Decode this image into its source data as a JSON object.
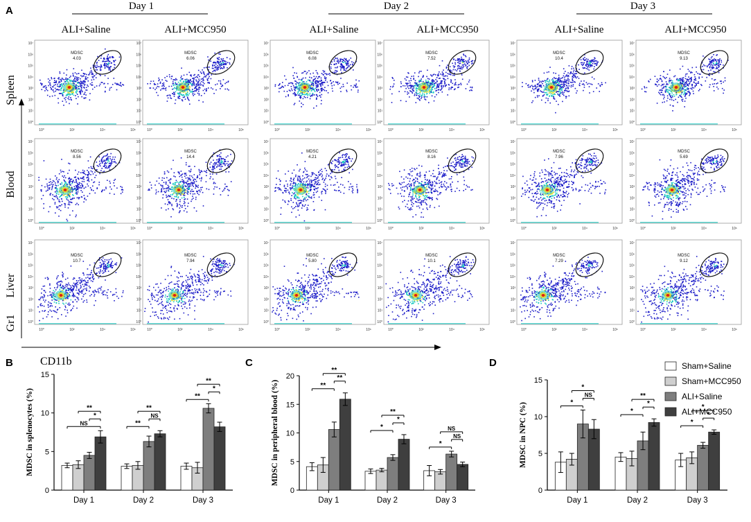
{
  "panel_letters": {
    "A": "A",
    "B": "B",
    "C": "C",
    "D": "D"
  },
  "flow": {
    "days": [
      "Day 1",
      "Day 2",
      "Day 3"
    ],
    "conditions": [
      "ALI+Saline",
      "ALI+MCC950",
      "ALI+Saline",
      "ALI+MCC950",
      "ALI+Saline",
      "ALI+MCC950"
    ],
    "tissues": [
      "Spleen",
      "Blood",
      "Liver"
    ],
    "y_marker": "Gr1",
    "x_marker": "CD11b",
    "gate_label": "MDSC",
    "gate_values": [
      [
        "4.03",
        "6.06",
        "6.08",
        "7.52",
        "10.4",
        "9.13"
      ],
      [
        "8.56",
        "14.4",
        "4.21",
        "8.16",
        "7.96",
        "5.69"
      ],
      [
        "10.7",
        "7.94",
        "5.80",
        "10.1",
        "7.29",
        "9.12"
      ]
    ],
    "y_ticks": [
      "10⁷",
      "10⁶",
      "10⁵",
      "10⁴",
      "10³",
      "10²",
      "10¹",
      "10⁰"
    ],
    "x_ticks": [
      "10⁰",
      "10²",
      "10⁴",
      "10⁶"
    ],
    "colors": {
      "low": "#1c1cc8",
      "mid": "#18c8c0",
      "high": "#f0e020",
      "peak": "#e02010",
      "gate": "#111111"
    }
  },
  "legend": {
    "entries": [
      "Sham+Saline",
      "Sham+MCC950",
      "ALI+Saline",
      "ALI+MCC950"
    ],
    "colors": [
      "#ffffff",
      "#cfcfcf",
      "#7e7e7e",
      "#3f3f3f"
    ]
  },
  "chart_data": [
    {
      "type": "bar",
      "panel": "B",
      "title": "",
      "xlabel": "",
      "ylabel": "MDSC in splenocytes (%)",
      "categories": [
        "Day 1",
        "Day 2",
        "Day 3"
      ],
      "ylim": [
        0,
        15
      ],
      "yticks": [
        "0",
        "5",
        "10",
        "15"
      ],
      "series": [
        {
          "name": "Sham+Saline",
          "values": [
            3.2,
            3.1,
            3.1
          ],
          "errors": [
            0.3,
            0.3,
            0.4
          ]
        },
        {
          "name": "Sham+MCC950",
          "values": [
            3.3,
            3.2,
            2.9
          ],
          "errors": [
            0.5,
            0.5,
            0.7
          ]
        },
        {
          "name": "ALI+Saline",
          "values": [
            4.5,
            6.3,
            10.6
          ],
          "errors": [
            0.4,
            0.7,
            0.6
          ]
        },
        {
          "name": "ALI+MCC950",
          "values": [
            6.9,
            7.3,
            8.2
          ],
          "errors": [
            0.8,
            0.4,
            0.6
          ]
        }
      ],
      "annotations": [
        {
          "cat": 0,
          "a": 0,
          "b": 3,
          "label": "NS",
          "level": 0
        },
        {
          "cat": 0,
          "a": 2,
          "b": 3,
          "label": "*",
          "level": 1
        },
        {
          "cat": 0,
          "a": 1,
          "b": 3,
          "label": "**",
          "level": 2
        },
        {
          "cat": 1,
          "a": 0,
          "b": 2,
          "label": "**",
          "level": 0
        },
        {
          "cat": 1,
          "a": 2,
          "b": 3,
          "label": "NS",
          "level": 1
        },
        {
          "cat": 1,
          "a": 1,
          "b": 3,
          "label": "**",
          "level": 2
        },
        {
          "cat": 2,
          "a": 0,
          "b": 2,
          "label": "**",
          "level": 0
        },
        {
          "cat": 2,
          "a": 2,
          "b": 3,
          "label": "*",
          "level": 1
        },
        {
          "cat": 2,
          "a": 1,
          "b": 3,
          "label": "**",
          "level": 2
        }
      ]
    },
    {
      "type": "bar",
      "panel": "C",
      "title": "",
      "xlabel": "",
      "ylabel": "MDSC in peripheral blood (%)",
      "categories": [
        "Day 1",
        "Day 2",
        "Day 3"
      ],
      "ylim": [
        0,
        20
      ],
      "yticks": [
        "0",
        "5",
        "10",
        "15",
        "20"
      ],
      "series": [
        {
          "name": "Sham+Saline",
          "values": [
            4.1,
            3.3,
            3.4
          ],
          "errors": [
            0.7,
            0.4,
            0.9
          ]
        },
        {
          "name": "Sham+MCC950",
          "values": [
            4.4,
            3.5,
            3.2
          ],
          "errors": [
            1.3,
            0.3,
            0.4
          ]
        },
        {
          "name": "ALI+Saline",
          "values": [
            10.6,
            5.7,
            6.3
          ],
          "errors": [
            1.3,
            0.5,
            0.5
          ]
        },
        {
          "name": "ALI+MCC950",
          "values": [
            15.9,
            8.9,
            4.5
          ],
          "errors": [
            1.1,
            0.8,
            0.4
          ]
        }
      ],
      "annotations": [
        {
          "cat": 0,
          "a": 0,
          "b": 2,
          "label": "**",
          "level": 0
        },
        {
          "cat": 0,
          "a": 2,
          "b": 3,
          "label": "**",
          "level": 1
        },
        {
          "cat": 0,
          "a": 1,
          "b": 3,
          "label": "**",
          "level": 2
        },
        {
          "cat": 1,
          "a": 0,
          "b": 2,
          "label": "*",
          "level": 0
        },
        {
          "cat": 1,
          "a": 2,
          "b": 3,
          "label": "*",
          "level": 1
        },
        {
          "cat": 1,
          "a": 1,
          "b": 3,
          "label": "**",
          "level": 2
        },
        {
          "cat": 2,
          "a": 0,
          "b": 2,
          "label": "*",
          "level": 0
        },
        {
          "cat": 2,
          "a": 2,
          "b": 3,
          "label": "NS",
          "level": 1
        },
        {
          "cat": 2,
          "a": 1,
          "b": 3,
          "label": "NS",
          "level": 2
        }
      ]
    },
    {
      "type": "bar",
      "panel": "D",
      "title": "",
      "xlabel": "",
      "ylabel": "MDSC in NPC (%)",
      "categories": [
        "Day 1",
        "Day 2",
        "Day 3"
      ],
      "ylim": [
        0,
        15
      ],
      "yticks": [
        "0",
        "5",
        "10",
        "15"
      ],
      "series": [
        {
          "name": "Sham+Saline",
          "values": [
            3.8,
            4.5,
            4.1
          ],
          "errors": [
            1.4,
            0.6,
            0.9
          ]
        },
        {
          "name": "Sham+MCC950",
          "values": [
            4.2,
            4.3,
            4.4
          ],
          "errors": [
            0.8,
            1.0,
            0.8
          ]
        },
        {
          "name": "ALI+Saline",
          "values": [
            9.0,
            6.7,
            6.1
          ],
          "errors": [
            1.9,
            1.2,
            0.4
          ]
        },
        {
          "name": "ALI+MCC950",
          "values": [
            8.3,
            9.2,
            7.9
          ],
          "errors": [
            1.3,
            0.5,
            0.3
          ]
        }
      ],
      "annotations": [
        {
          "cat": 0,
          "a": 0,
          "b": 2,
          "label": "*",
          "level": 0
        },
        {
          "cat": 0,
          "a": 2,
          "b": 3,
          "label": "NS",
          "level": 1
        },
        {
          "cat": 0,
          "a": 1,
          "b": 3,
          "label": "*",
          "level": 2
        },
        {
          "cat": 1,
          "a": 0,
          "b": 2,
          "label": "*",
          "level": 0
        },
        {
          "cat": 1,
          "a": 2,
          "b": 3,
          "label": "*",
          "level": 1
        },
        {
          "cat": 1,
          "a": 1,
          "b": 3,
          "label": "**",
          "level": 2
        },
        {
          "cat": 2,
          "a": 0,
          "b": 2,
          "label": "*",
          "level": 0
        },
        {
          "cat": 2,
          "a": 2,
          "b": 3,
          "label": "*",
          "level": 1
        },
        {
          "cat": 2,
          "a": 1,
          "b": 3,
          "label": "*",
          "level": 2
        }
      ]
    }
  ]
}
